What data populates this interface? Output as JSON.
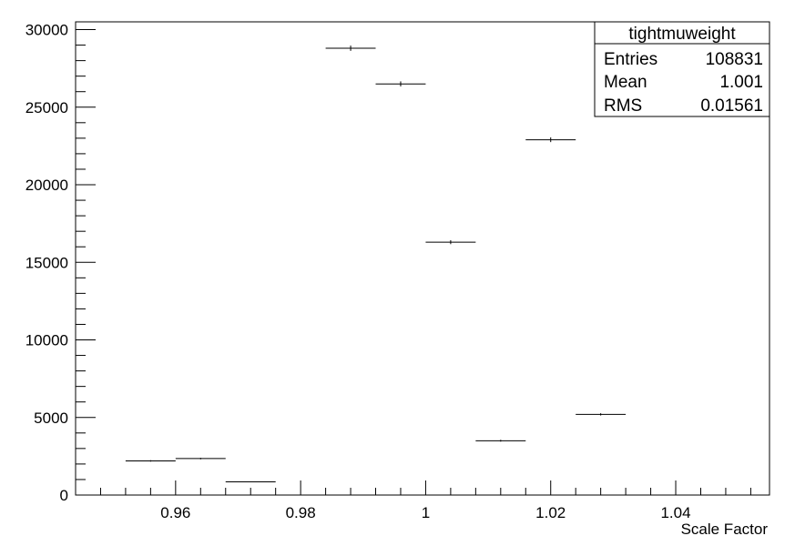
{
  "chart_data": {
    "type": "scatter",
    "title": "",
    "xlabel": "Scale Factor",
    "ylabel": "",
    "xlim": [
      0.944,
      1.055
    ],
    "ylim": [
      0,
      30500
    ],
    "x_ticks": [
      0.96,
      0.98,
      1,
      1.02,
      1.04
    ],
    "x_tick_labels": [
      "0.96",
      "0.98",
      "1",
      "1.02",
      "1.04"
    ],
    "y_ticks": [
      0,
      5000,
      10000,
      15000,
      20000,
      25000,
      30000
    ],
    "y_tick_labels": [
      "0",
      "5000",
      "10000",
      "15000",
      "20000",
      "25000",
      "30000"
    ],
    "bin_width": 0.008,
    "series": [
      {
        "x": [
          0.956,
          0.964,
          0.972,
          0.988,
          0.996,
          1.004,
          1.012,
          1.02,
          1.028
        ],
        "y": [
          2200,
          2350,
          850,
          28800,
          26500,
          16300,
          3500,
          22900,
          5200
        ]
      }
    ],
    "grid": false,
    "legend": "none"
  },
  "stats_box": {
    "title": "tightmuweight",
    "rows": [
      {
        "label": "Entries",
        "value": "108831"
      },
      {
        "label": "Mean",
        "value": "1.001"
      },
      {
        "label": "RMS",
        "value": "0.01561"
      }
    ]
  }
}
